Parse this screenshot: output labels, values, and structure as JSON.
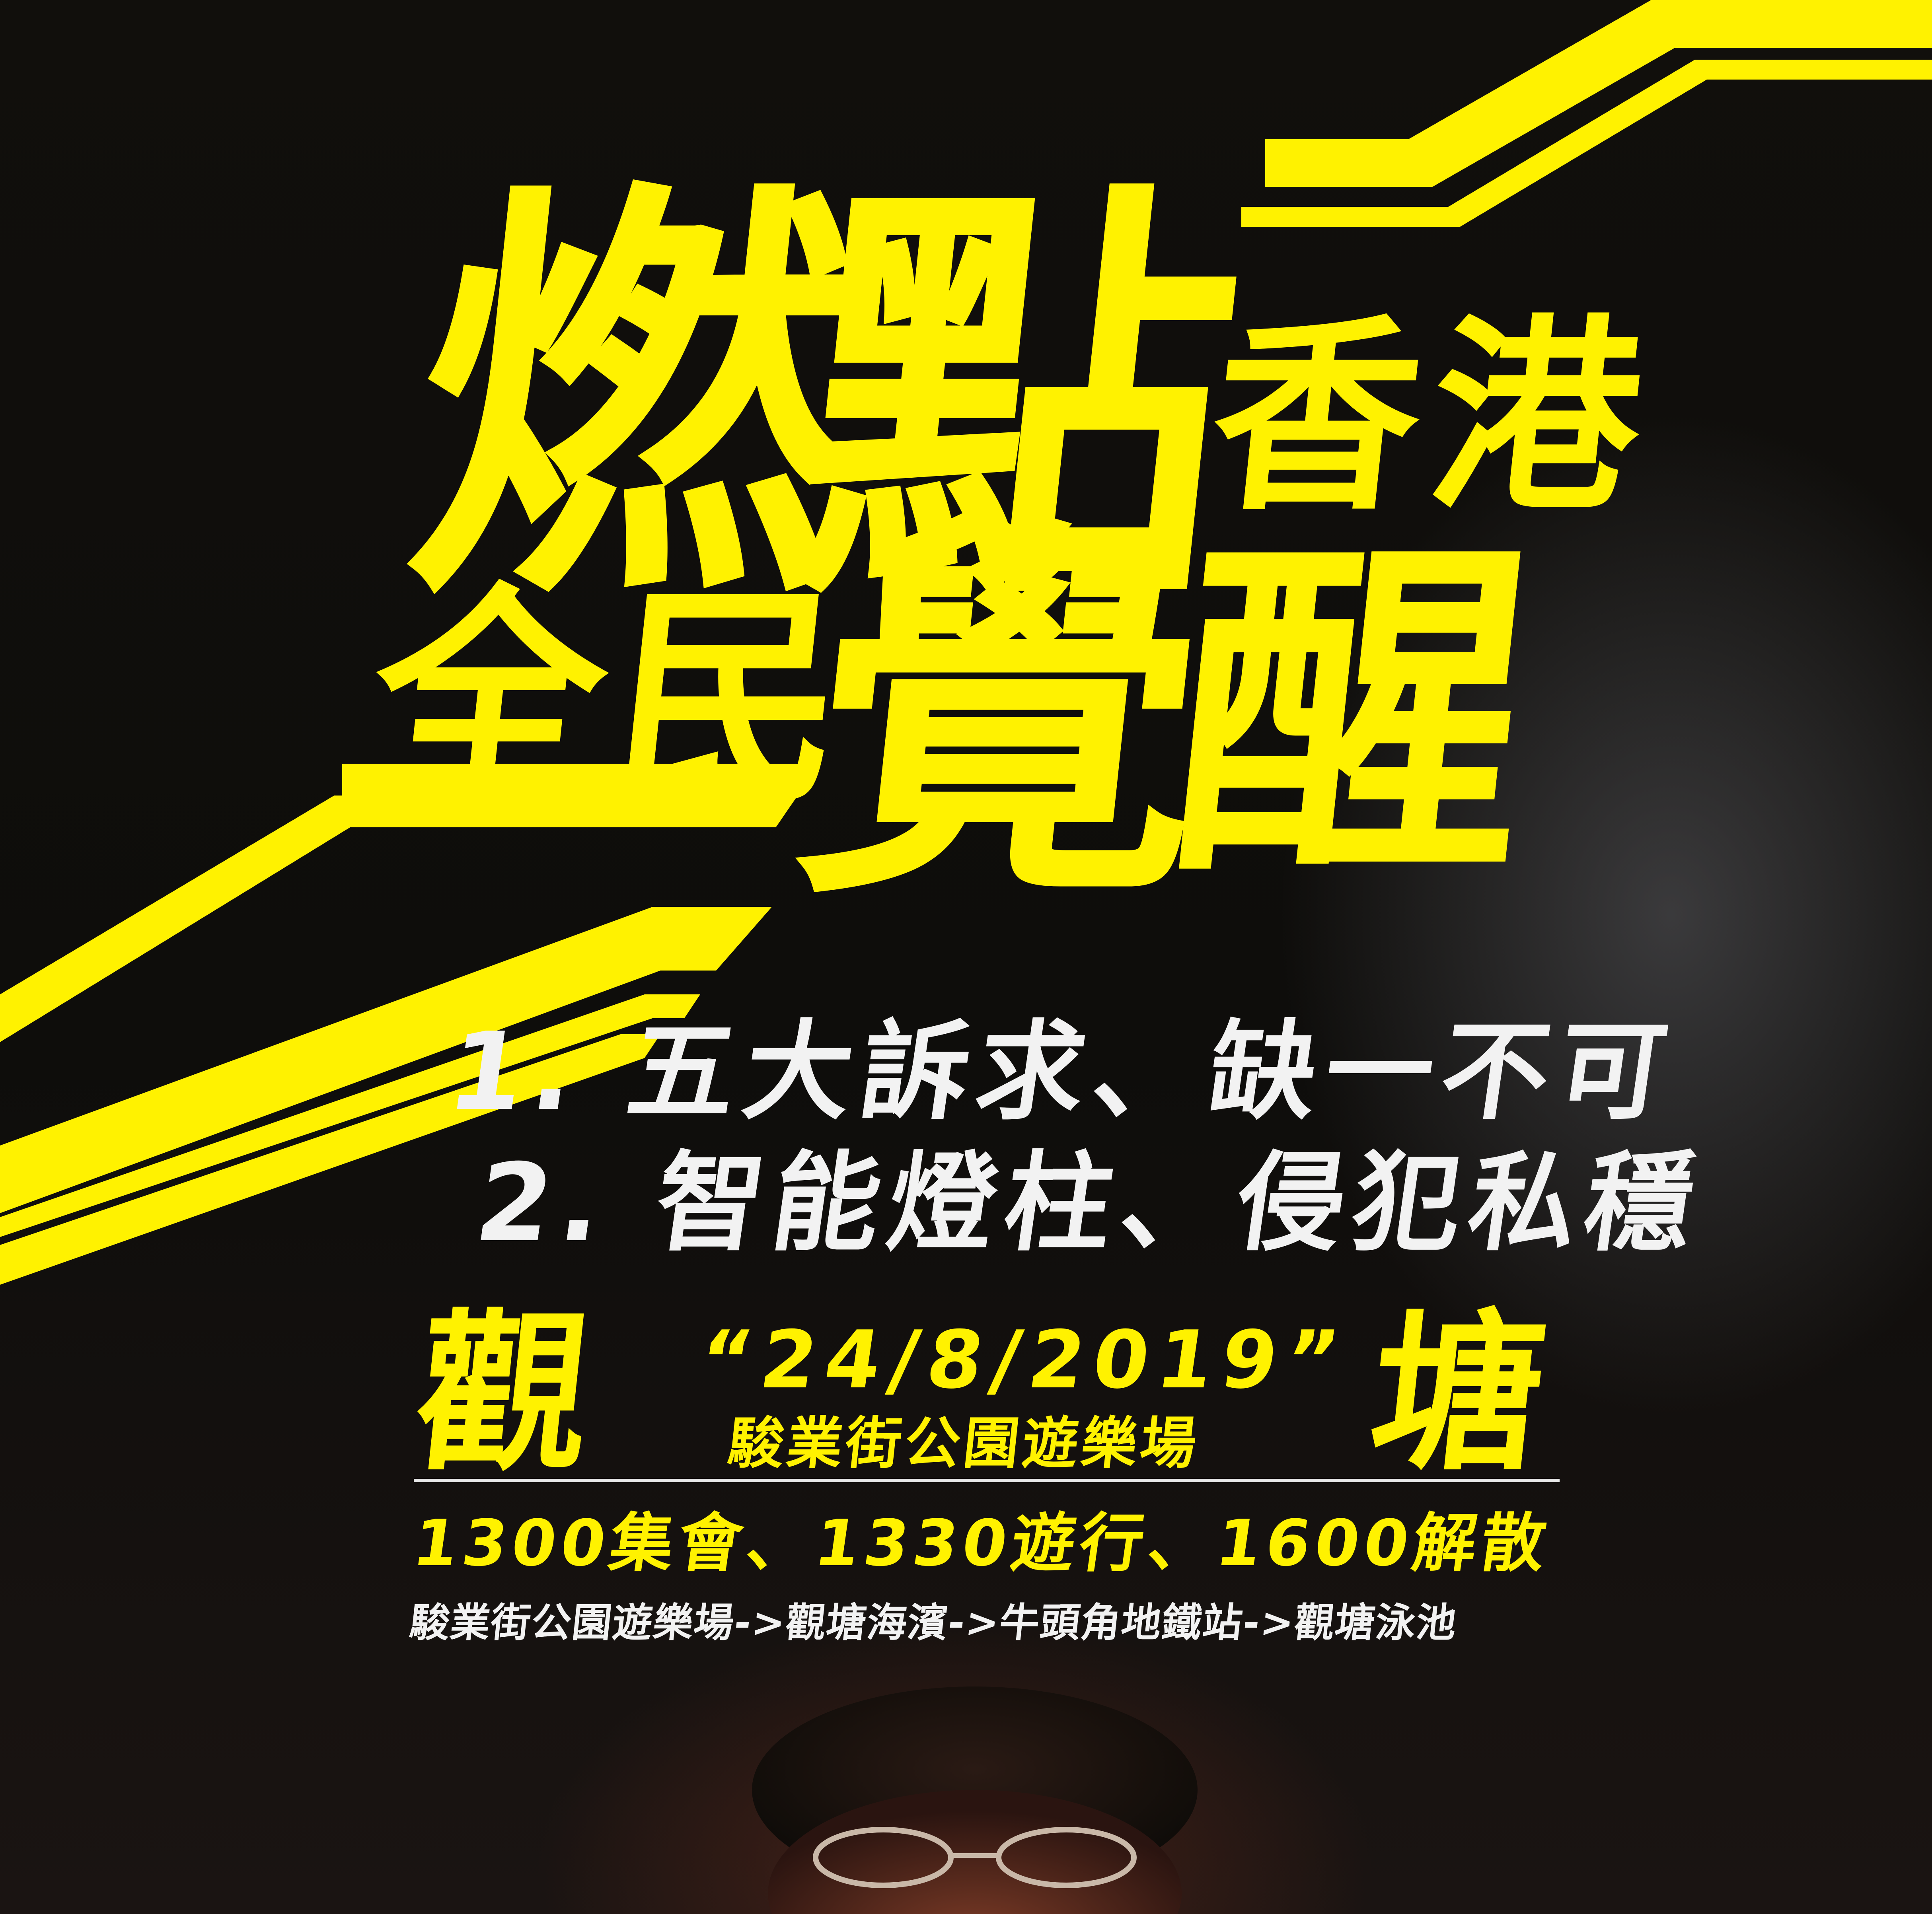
{
  "headline": {
    "char1": "燃",
    "char2": "點",
    "hong_kong": "香港",
    "all_people": "全民",
    "char_jue": "覺",
    "char_xing": "醒"
  },
  "demands": [
    "1. 五大訴求、缺一不可",
    "2. 智能燈柱、侵犯私穩"
  ],
  "location": {
    "char_left": "觀",
    "char_right": "塘",
    "date": "“24/8/2019”",
    "venue": "駿業街公園遊樂場"
  },
  "schedule": "1300集會、1330遊行、1600解散",
  "route": "駿業街公園遊樂場->觀塘海濱->牛頭角地鐵站->觀塘泳池",
  "colors": {
    "accent_yellow": "#fff200",
    "background": "#0d0b08",
    "text_white": "#f2f2f2"
  }
}
